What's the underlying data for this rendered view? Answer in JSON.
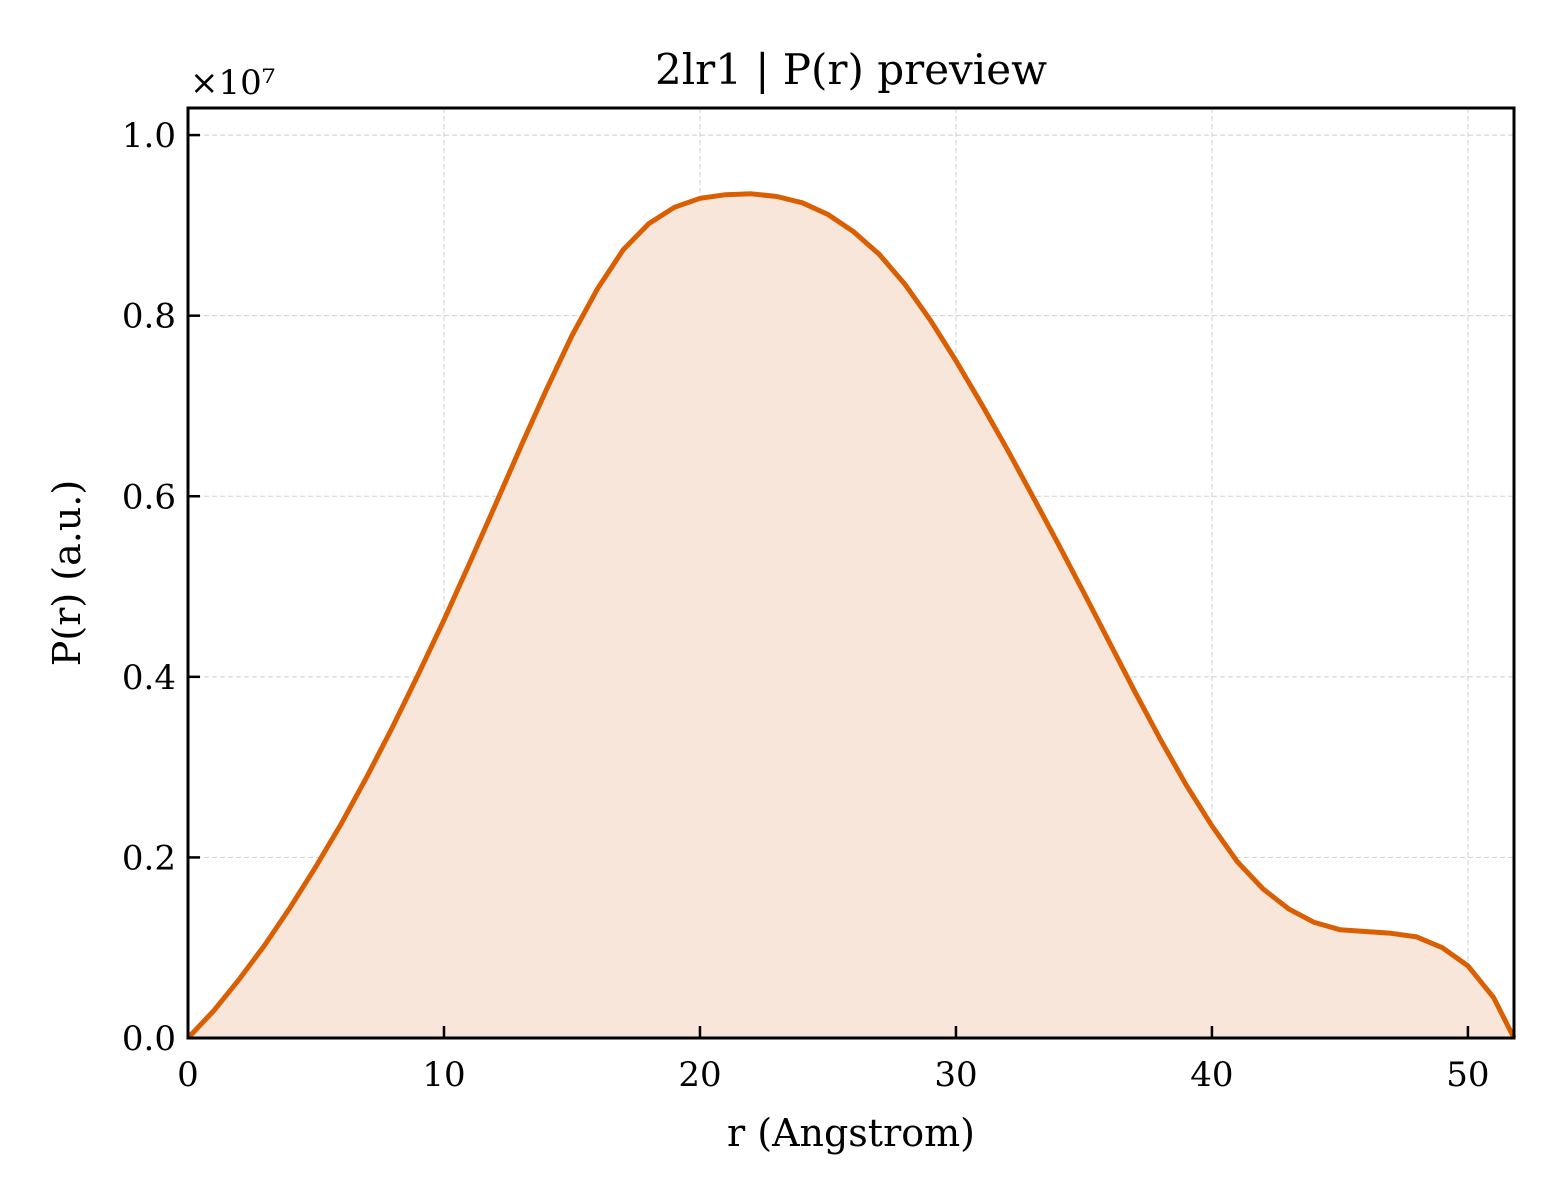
{
  "chart_data": {
    "type": "area",
    "title": "2lr1 | P(r) preview",
    "xlabel": "r (Angstrom)",
    "ylabel": "P(r) (a.u.)",
    "y_offset_label": "×10⁷",
    "xlim": [
      0,
      51.8
    ],
    "ylim": [
      0,
      1.03
    ],
    "x_ticks": [
      0,
      10,
      20,
      30,
      40,
      50
    ],
    "y_ticks": [
      0.0,
      0.2,
      0.4,
      0.6,
      0.8,
      1.0
    ],
    "x_tick_labels": [
      "0",
      "10",
      "20",
      "30",
      "40",
      "50"
    ],
    "y_tick_labels": [
      "0.0",
      "0.2",
      "0.4",
      "0.6",
      "0.8",
      "1.0"
    ],
    "grid": true,
    "line_color": "#d95f02",
    "fill_color": "#f8e6da",
    "series": [
      {
        "x": [
          0,
          1,
          2,
          3,
          4,
          5,
          6,
          7,
          8,
          9,
          10,
          11,
          12,
          13,
          14,
          15,
          16,
          17,
          18,
          19,
          20,
          21,
          22,
          23,
          24,
          25,
          26,
          27,
          28,
          29,
          30,
          31,
          32,
          33,
          34,
          35,
          36,
          37,
          38,
          39,
          40,
          41,
          42,
          43,
          44,
          45,
          46,
          47,
          48,
          49,
          50,
          51,
          51.8
        ],
        "y": [
          0.0,
          0.03,
          0.065,
          0.103,
          0.145,
          0.19,
          0.238,
          0.29,
          0.345,
          0.403,
          0.463,
          0.526,
          0.59,
          0.655,
          0.718,
          0.778,
          0.83,
          0.873,
          0.902,
          0.92,
          0.93,
          0.934,
          0.935,
          0.932,
          0.925,
          0.912,
          0.893,
          0.868,
          0.835,
          0.795,
          0.75,
          0.702,
          0.652,
          0.6,
          0.547,
          0.493,
          0.438,
          0.383,
          0.33,
          0.28,
          0.235,
          0.195,
          0.165,
          0.143,
          0.128,
          0.12,
          0.118,
          0.116,
          0.112,
          0.1,
          0.08,
          0.045,
          0.0
        ]
      }
    ]
  }
}
